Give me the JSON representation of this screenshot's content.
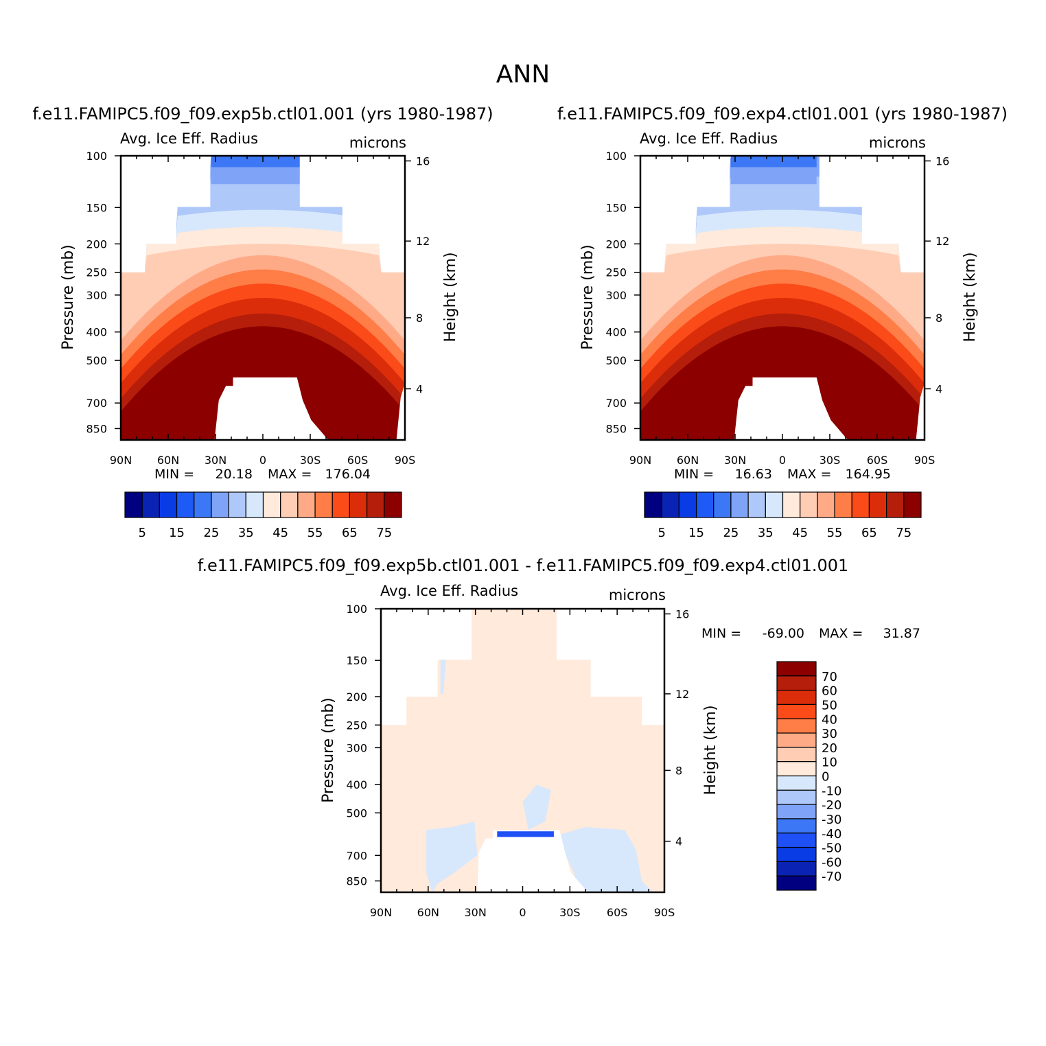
{
  "page_title": "ANN",
  "colors": {
    "abs_scale": [
      "#000080",
      "#0a23b4",
      "#0a3ce6",
      "#1e5af5",
      "#3c78f5",
      "#7fa4f7",
      "#afc8fa",
      "#d7e8fc",
      "#ffeadb",
      "#ffccb4",
      "#ffaa87",
      "#ff7d46",
      "#fa4b19",
      "#dc2d0a",
      "#b41e0a",
      "#8c0000"
    ],
    "diff_scale": [
      "#000080",
      "#0a23b4",
      "#0a3ce6",
      "#1e50f5",
      "#3c78f5",
      "#7fa4f7",
      "#afc8fa",
      "#d7e8fc",
      "#ffeadb",
      "#ffccb4",
      "#ffaa87",
      "#ff7d46",
      "#fa4b19",
      "#dc2d0a",
      "#b41e0a",
      "#8c0000"
    ]
  },
  "chart_data": [
    {
      "type": "heatmap",
      "panel_id": "top-left",
      "case_title": "f.e11.FAMIPC5.f09_f09.exp5b.ctl01.001 (yrs 1980-1987)",
      "variable_title": "Avg. Ice Eff. Radius",
      "units": "microns",
      "ylabel": "Pressure (mb)",
      "y2label": "Height (km)",
      "x_ticks": [
        "90N",
        "60N",
        "30N",
        "0",
        "30S",
        "60S",
        "90S"
      ],
      "y_ticks": [
        "100",
        "150",
        "200",
        "250",
        "300",
        "400",
        "500",
        "700",
        "850"
      ],
      "y2_ticks": [
        "16",
        "12",
        "8",
        "4"
      ],
      "stats": {
        "min_label": "MIN =",
        "min": "20.18",
        "max_label": "MAX =",
        "max": "176.04"
      },
      "colorbar_labels": [
        "5",
        "15",
        "25",
        "35",
        "45",
        "55",
        "65",
        "75"
      ],
      "levels": [
        5,
        10,
        15,
        20,
        25,
        30,
        35,
        40,
        45,
        50,
        55,
        60,
        65,
        70,
        75
      ]
    },
    {
      "type": "heatmap",
      "panel_id": "top-right",
      "case_title": "f.e11.FAMIPC5.f09_f09.exp4.ctl01.001 (yrs 1980-1987)",
      "variable_title": "Avg. Ice Eff. Radius",
      "units": "microns",
      "ylabel": "Pressure (mb)",
      "y2label": "Height (km)",
      "x_ticks": [
        "90N",
        "60N",
        "30N",
        "0",
        "30S",
        "60S",
        "90S"
      ],
      "y_ticks": [
        "100",
        "150",
        "200",
        "250",
        "300",
        "400",
        "500",
        "700",
        "850"
      ],
      "y2_ticks": [
        "16",
        "12",
        "8",
        "4"
      ],
      "stats": {
        "min_label": "MIN =",
        "min": "16.63",
        "max_label": "MAX =",
        "max": "164.95"
      },
      "colorbar_labels": [
        "5",
        "15",
        "25",
        "35",
        "45",
        "55",
        "65",
        "75"
      ],
      "levels": [
        5,
        10,
        15,
        20,
        25,
        30,
        35,
        40,
        45,
        50,
        55,
        60,
        65,
        70,
        75
      ]
    },
    {
      "type": "heatmap",
      "panel_id": "bottom-diff",
      "case_title": "f.e11.FAMIPC5.f09_f09.exp5b.ctl01.001 - f.e11.FAMIPC5.f09_f09.exp4.ctl01.001",
      "variable_title": "Avg. Ice Eff. Radius",
      "units": "microns",
      "ylabel": "Pressure (mb)",
      "y2label": "Height (km)",
      "x_ticks": [
        "90N",
        "60N",
        "30N",
        "0",
        "30S",
        "60S",
        "90S"
      ],
      "y_ticks": [
        "100",
        "150",
        "200",
        "250",
        "300",
        "400",
        "500",
        "700",
        "850"
      ],
      "y2_ticks": [
        "16",
        "12",
        "8",
        "4"
      ],
      "stats": {
        "min_label": "MIN =",
        "min": "-69.00",
        "max_label": "MAX =",
        "max": "31.87"
      },
      "colorbar_labels": [
        "70",
        "60",
        "50",
        "40",
        "30",
        "20",
        "10",
        "0",
        "-10",
        "-20",
        "-30",
        "-40",
        "-50",
        "-60",
        "-70"
      ],
      "levels": [
        -70,
        -60,
        -50,
        -40,
        -30,
        -20,
        -10,
        0,
        10,
        20,
        30,
        40,
        50,
        60,
        70
      ]
    }
  ]
}
